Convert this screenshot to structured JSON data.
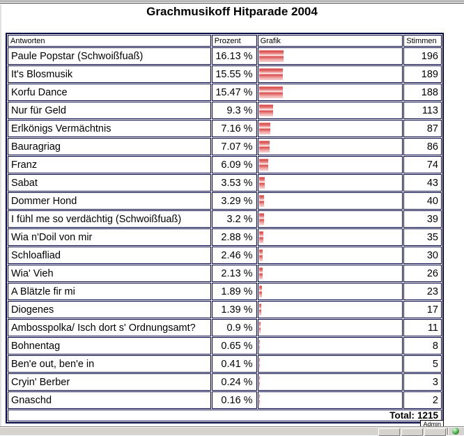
{
  "page": {
    "title": "Grachmusikoff Hitparade 2004",
    "total_label": "Total:",
    "total_value": "1215",
    "admin_label": "Admin"
  },
  "colors": {
    "table_border": "#000040",
    "bar_red": "#d84848",
    "taskbar_bg": "#d6d3ce"
  },
  "table": {
    "columns": [
      "Antworten",
      "Prozent",
      "Grafik",
      "Stimmen"
    ],
    "rows": [
      {
        "antwort": "Paule Popstar (Schwoißfuaß)",
        "prozent": "16.13 %",
        "pct": 16.13,
        "stimmen": "196"
      },
      {
        "antwort": "It's Blosmusik",
        "prozent": "15.55 %",
        "pct": 15.55,
        "stimmen": "189"
      },
      {
        "antwort": "Korfu Dance",
        "prozent": "15.47 %",
        "pct": 15.47,
        "stimmen": "188"
      },
      {
        "antwort": "Nur für Geld",
        "prozent": "9.3 %",
        "pct": 9.3,
        "stimmen": "113"
      },
      {
        "antwort": "Erlkönigs Vermächtnis",
        "prozent": "7.16 %",
        "pct": 7.16,
        "stimmen": "87"
      },
      {
        "antwort": "Bauragriag",
        "prozent": "7.07 %",
        "pct": 7.07,
        "stimmen": "86"
      },
      {
        "antwort": "Franz",
        "prozent": "6.09 %",
        "pct": 6.09,
        "stimmen": "74"
      },
      {
        "antwort": "Sabat",
        "prozent": "3.53 %",
        "pct": 3.53,
        "stimmen": "43"
      },
      {
        "antwort": "Dommer Hond",
        "prozent": "3.29 %",
        "pct": 3.29,
        "stimmen": "40"
      },
      {
        "antwort": "I fühl me so verdächtig (Schwoißfuaß)",
        "prozent": "3.2 %",
        "pct": 3.2,
        "stimmen": "39"
      },
      {
        "antwort": "Wia n'Doil von mir",
        "prozent": "2.88 %",
        "pct": 2.88,
        "stimmen": "35"
      },
      {
        "antwort": "Schloafliad",
        "prozent": "2.46 %",
        "pct": 2.46,
        "stimmen": "30"
      },
      {
        "antwort": "Wia' Vieh",
        "prozent": "2.13 %",
        "pct": 2.13,
        "stimmen": "26"
      },
      {
        "antwort": "A Blätzle fir mi",
        "prozent": "1.89 %",
        "pct": 1.89,
        "stimmen": "23"
      },
      {
        "antwort": "Diogenes",
        "prozent": "1.39 %",
        "pct": 1.39,
        "stimmen": "17"
      },
      {
        "antwort": "Ambosspolka/ Isch dort s' Ordnungsamt?",
        "prozent": "0.9 %",
        "pct": 0.9,
        "stimmen": "11"
      },
      {
        "antwort": "Bohnentag",
        "prozent": "0.65 %",
        "pct": 0.65,
        "stimmen": "8"
      },
      {
        "antwort": "Ben'e out, ben'e in",
        "prozent": "0.41 %",
        "pct": 0.41,
        "stimmen": "5"
      },
      {
        "antwort": "Cryin' Berber",
        "prozent": "0.24 %",
        "pct": 0.24,
        "stimmen": "3"
      },
      {
        "antwort": "Gnaschd",
        "prozent": "0.16 %",
        "pct": 0.16,
        "stimmen": "2"
      }
    ]
  }
}
